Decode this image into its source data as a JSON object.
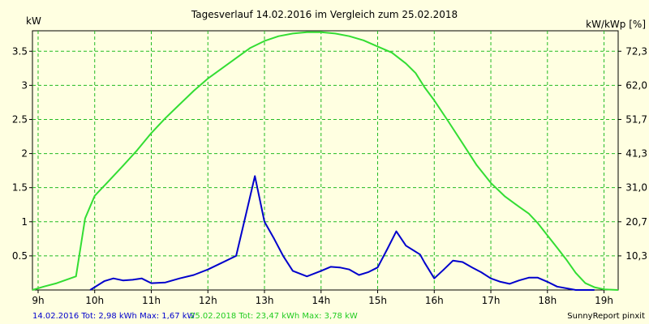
{
  "chart_data": {
    "type": "line",
    "title": "Tagesverlauf 14.02.2016 im Vergleich zum 25.02.2018",
    "ylabel_left": "kW",
    "ylabel_right": "kW/kWp [%]",
    "xlim": [
      8.9,
      19.25
    ],
    "ylim": [
      0,
      3.8
    ],
    "x_ticks": [
      {
        "x": 9,
        "label": "9h"
      },
      {
        "x": 10,
        "label": "10h"
      },
      {
        "x": 11,
        "label": "11h"
      },
      {
        "x": 12,
        "label": "12h"
      },
      {
        "x": 13,
        "label": "13h"
      },
      {
        "x": 14,
        "label": "14h"
      },
      {
        "x": 15,
        "label": "15h"
      },
      {
        "x": 16,
        "label": "16h"
      },
      {
        "x": 17,
        "label": "17h"
      },
      {
        "x": 18,
        "label": "18h"
      },
      {
        "x": 19,
        "label": "19h"
      }
    ],
    "y_ticks_left": [
      {
        "y": 0.5,
        "label": "0.5"
      },
      {
        "y": 1,
        "label": "1"
      },
      {
        "y": 1.5,
        "label": "1.5"
      },
      {
        "y": 2,
        "label": "2"
      },
      {
        "y": 2.5,
        "label": "2.5"
      },
      {
        "y": 3,
        "label": "3"
      },
      {
        "y": 3.5,
        "label": "3.5"
      }
    ],
    "y_ticks_right": [
      {
        "y": 0.5,
        "label": "10,3"
      },
      {
        "y": 1,
        "label": "20,7"
      },
      {
        "y": 1.5,
        "label": "31,0"
      },
      {
        "y": 2,
        "label": "41,3"
      },
      {
        "y": 2.5,
        "label": "51,7"
      },
      {
        "y": 3,
        "label": "62,0"
      },
      {
        "y": 3.5,
        "label": "72,3"
      }
    ],
    "grid": true,
    "series": [
      {
        "name": "14.02.2016",
        "color": "#0000cc",
        "x": [
          9.92,
          10.17,
          10.33,
          10.5,
          10.67,
          10.83,
          11.0,
          11.25,
          11.5,
          11.75,
          12.0,
          12.25,
          12.5,
          12.67,
          12.83,
          13.0,
          13.17,
          13.33,
          13.5,
          13.75,
          14.0,
          14.17,
          14.33,
          14.5,
          14.67,
          14.83,
          15.0,
          15.17,
          15.33,
          15.5,
          15.75,
          15.83,
          16.0,
          16.17,
          16.33,
          16.5,
          16.67,
          16.83,
          17.0,
          17.17,
          17.33,
          17.5,
          17.67,
          17.83,
          18.0,
          18.17,
          18.5,
          18.83
        ],
        "y": [
          0.0,
          0.13,
          0.17,
          0.14,
          0.15,
          0.17,
          0.1,
          0.11,
          0.17,
          0.22,
          0.3,
          0.4,
          0.5,
          1.1,
          1.67,
          1.0,
          0.75,
          0.5,
          0.28,
          0.2,
          0.28,
          0.34,
          0.33,
          0.3,
          0.22,
          0.26,
          0.33,
          0.6,
          0.86,
          0.65,
          0.52,
          0.4,
          0.17,
          0.3,
          0.43,
          0.41,
          0.33,
          0.26,
          0.17,
          0.12,
          0.09,
          0.14,
          0.18,
          0.18,
          0.12,
          0.05,
          0.0,
          0.0
        ]
      },
      {
        "name": "25.02.2018",
        "color": "#33dd33",
        "x": [
          8.9,
          9.1,
          9.33,
          9.67,
          9.83,
          10.0,
          10.25,
          10.5,
          10.75,
          11.0,
          11.25,
          11.5,
          11.75,
          12.0,
          12.25,
          12.5,
          12.75,
          13.0,
          13.25,
          13.5,
          13.75,
          14.0,
          14.25,
          14.5,
          14.75,
          15.0,
          15.25,
          15.5,
          15.67,
          15.83,
          16.0,
          16.25,
          16.5,
          16.75,
          17.0,
          17.25,
          17.5,
          17.67,
          17.83,
          18.0,
          18.17,
          18.33,
          18.5,
          18.67,
          18.83,
          19.0,
          19.25
        ],
        "y": [
          0.0,
          0.05,
          0.1,
          0.2,
          1.05,
          1.38,
          1.6,
          1.82,
          2.05,
          2.3,
          2.52,
          2.72,
          2.92,
          3.1,
          3.25,
          3.4,
          3.55,
          3.65,
          3.72,
          3.76,
          3.78,
          3.78,
          3.76,
          3.72,
          3.66,
          3.57,
          3.48,
          3.32,
          3.18,
          2.97,
          2.78,
          2.47,
          2.15,
          1.83,
          1.57,
          1.37,
          1.22,
          1.12,
          0.98,
          0.8,
          0.62,
          0.45,
          0.25,
          0.1,
          0.04,
          0.01,
          0.0
        ]
      }
    ],
    "footer": {
      "series1_text": "14.02.2016 Tot: 2,98 kWh Max: 1,67 kW",
      "series2_text": "25.02.2018 Tot: 23,47 kWh Max: 3,78 kW",
      "credit": "SunnyReport pinxit"
    }
  }
}
